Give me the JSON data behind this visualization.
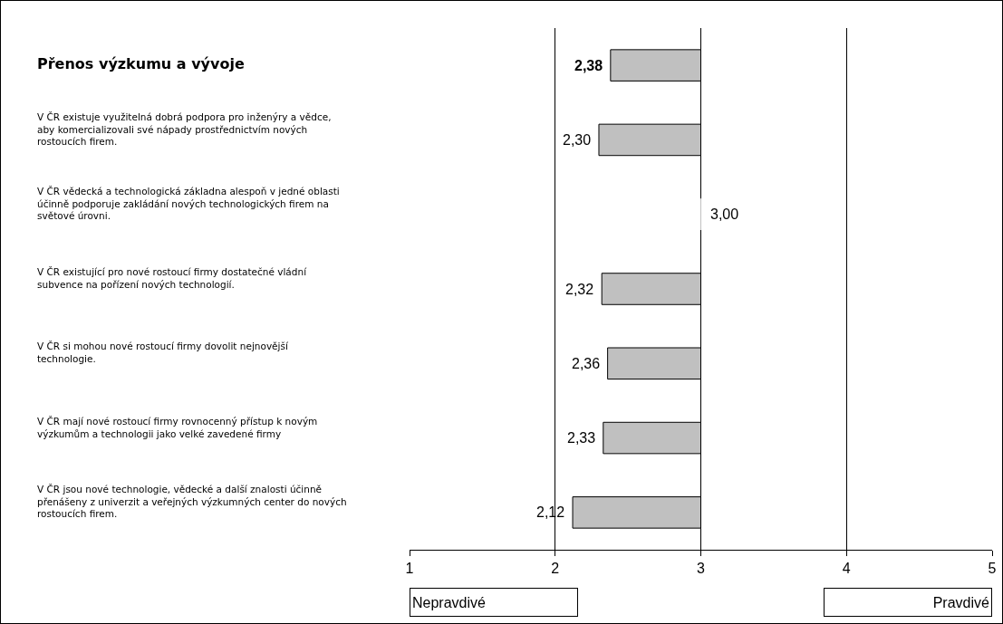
{
  "chart_data": {
    "type": "bar",
    "orientation": "horizontal",
    "title": "Přenos výzkumu a vývoje",
    "categories": [
      null,
      "V ČR existuje využitelná dobrá podpora pro inženýry a vědce, aby komercializovali své nápady prostřednictvím nových rostoucích firem.",
      "V ČR vědecká a technologická základna alespoň v jedné oblasti účinně podporuje zakládání nových technologických firem na světové úrovni.",
      "V ČR existující pro nové rostoucí firmy dostatečné vládní subvence na pořízení nových technologií.",
      "V ČR si mohou nové rostoucí firmy dovolit nejnovější technologie.",
      "V ČR mají nové rostoucí firmy rovnocenný přístup k novým výzkumům a technologii jako velké zavedené firmy",
      "V ČR jsou nové technologie, vědecké a další znalosti účinně přenášeny z univerzit a veřejných výzkumných center do nových rostoucích firem."
    ],
    "base": [
      2.38,
      2.3,
      3.0,
      2.32,
      2.36,
      2.33,
      2.12
    ],
    "values": [
      0.62,
      0.7,
      0,
      0.68,
      0.64,
      0.67,
      0.88
    ],
    "legend": false,
    "color": "#c0c0c0",
    "xlim": [
      1,
      5
    ],
    "xticks": [
      1,
      2,
      3,
      4,
      5
    ],
    "grid": "x",
    "annotations": [
      {
        "text": "2,38",
        "x": 2.38
      },
      {
        "text": "2,30",
        "x": 2.3,
        "y": "V ČR existuje využitelná dobrá podpora pro inženýry a vědce, aby komercializovali své nápady prostřednictvím nových rostoucích firem."
      },
      {
        "text": "3,00",
        "x": 3.0,
        "y": "V ČR vědecká a technologická základna alespoň v jedné oblasti účinně podporuje zakládání nových technologických firem na světové úrovni."
      },
      {
        "text": "2,32",
        "x": 2.32,
        "y": "V ČR existující pro nové rostoucí firmy dostatečné vládní subvence na pořízení nových technologií."
      },
      {
        "text": "2,36",
        "x": 2.36,
        "y": "V ČR si mohou nové rostoucí firmy dovolit nejnovější technologie."
      },
      {
        "text": "2,33",
        "x": 2.33,
        "y": "V ČR mají nové rostoucí firmy rovnocenný přístup k novým výzkumům a technologii jako velké zavedené firmy"
      },
      {
        "text": "2,12",
        "x": 2.12,
        "y": "V ČR jsou nové technologie, vědecké a další znalosti účinně přenášeny z univerzit a veřejných výzkumných center do nových rostoucích firem."
      },
      "Nepravdivé",
      "Pravdivé"
    ]
  }
}
